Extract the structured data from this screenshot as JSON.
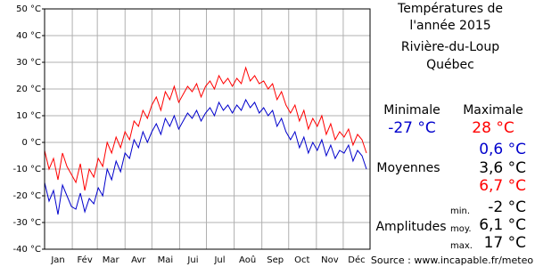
{
  "chart_data": {
    "type": "line",
    "title_lines": [
      "Températures de",
      "l'année 2015"
    ],
    "location_lines": [
      "Rivière-du-Loup",
      "Québec"
    ],
    "x": [
      1,
      6,
      11,
      16,
      21,
      26,
      31,
      36,
      41,
      46,
      51,
      56,
      61,
      66,
      71,
      76,
      81,
      86,
      91,
      96,
      101,
      106,
      111,
      116,
      121,
      126,
      131,
      136,
      141,
      146,
      151,
      156,
      161,
      166,
      171,
      176,
      181,
      186,
      191,
      196,
      201,
      206,
      211,
      216,
      221,
      226,
      231,
      236,
      241,
      246,
      251,
      256,
      261,
      266,
      271,
      276,
      281,
      286,
      291,
      296,
      301,
      306,
      311,
      316,
      321,
      326,
      331,
      336,
      341,
      346,
      351,
      356,
      361
    ],
    "series": [
      {
        "name": "Maximale",
        "color": "#ff0000",
        "values": [
          -3,
          -10,
          -6,
          -14,
          -4,
          -9,
          -12,
          -15,
          -8,
          -18,
          -10,
          -13,
          -6,
          -9,
          0,
          -4,
          2,
          -2,
          4,
          1,
          8,
          6,
          12,
          9,
          14,
          17,
          12,
          19,
          16,
          21,
          15,
          18,
          21,
          19,
          22,
          17,
          21,
          23,
          20,
          25,
          22,
          24,
          21,
          24,
          22,
          28,
          23,
          25,
          22,
          23,
          20,
          22,
          16,
          19,
          14,
          11,
          14,
          8,
          12,
          5,
          9,
          6,
          10,
          3,
          7,
          1,
          4,
          2,
          5,
          -1,
          3,
          1,
          -4
        ]
      },
      {
        "name": "Minimale",
        "color": "#0000cc",
        "values": [
          -15,
          -22,
          -18,
          -27,
          -16,
          -20,
          -24,
          -25,
          -19,
          -26,
          -21,
          -23,
          -17,
          -20,
          -10,
          -14,
          -7,
          -11,
          -4,
          -6,
          1,
          -2,
          4,
          0,
          4,
          7,
          3,
          9,
          6,
          10,
          5,
          8,
          11,
          9,
          12,
          8,
          11,
          13,
          10,
          15,
          12,
          14,
          11,
          14,
          12,
          16,
          13,
          15,
          11,
          13,
          10,
          12,
          6,
          9,
          4,
          1,
          4,
          -2,
          2,
          -4,
          0,
          -3,
          1,
          -5,
          -1,
          -6,
          -3,
          -4,
          -1,
          -7,
          -3,
          -5,
          -10
        ]
      }
    ],
    "xlim": [
      1,
      365
    ],
    "xticks": [
      {
        "value": 16,
        "label": "Jan"
      },
      {
        "value": 46,
        "label": "Fév"
      },
      {
        "value": 75,
        "label": "Mar"
      },
      {
        "value": 106,
        "label": "Avr"
      },
      {
        "value": 136,
        "label": "Mai"
      },
      {
        "value": 167,
        "label": "Jui"
      },
      {
        "value": 197,
        "label": "Jul"
      },
      {
        "value": 228,
        "label": "Aoû"
      },
      {
        "value": 259,
        "label": "Sep"
      },
      {
        "value": 289,
        "label": "Oct"
      },
      {
        "value": 320,
        "label": "Nov"
      },
      {
        "value": 350,
        "label": "Déc"
      }
    ],
    "xgrid": [
      1,
      32,
      60,
      91,
      121,
      152,
      182,
      213,
      244,
      274,
      305,
      335
    ],
    "ylim": [
      -40,
      50
    ],
    "yticks": [
      {
        "value": -40,
        "label": "-40 °C"
      },
      {
        "value": -30,
        "label": "-30 °C"
      },
      {
        "value": -20,
        "label": "-20 °C"
      },
      {
        "value": -10,
        "label": "-10 °C"
      },
      {
        "value": 0,
        "label": "0 °C"
      },
      {
        "value": 10,
        "label": "10 °C"
      },
      {
        "value": 20,
        "label": "20 °C"
      },
      {
        "value": 30,
        "label": "30 °C"
      },
      {
        "value": 40,
        "label": "40 °C"
      },
      {
        "value": 50,
        "label": "50 °C"
      }
    ],
    "grid": true,
    "stats": {
      "minimale": {
        "label": "Minimale",
        "value": "-27 °C"
      },
      "maximale": {
        "label": "Maximale",
        "value": "28 °C"
      },
      "moyennes": {
        "label": "Moyennes",
        "values": [
          "0,6 °C",
          "3,6 °C",
          "6,7 °C"
        ]
      },
      "amplitudes": {
        "label": "Amplitudes",
        "sublabels": [
          "min.",
          "moy.",
          "max."
        ],
        "values": [
          "-2 °C",
          "6,1 °C",
          "17 °C"
        ]
      }
    },
    "source": "Source : www.incapable.fr/meteo"
  }
}
